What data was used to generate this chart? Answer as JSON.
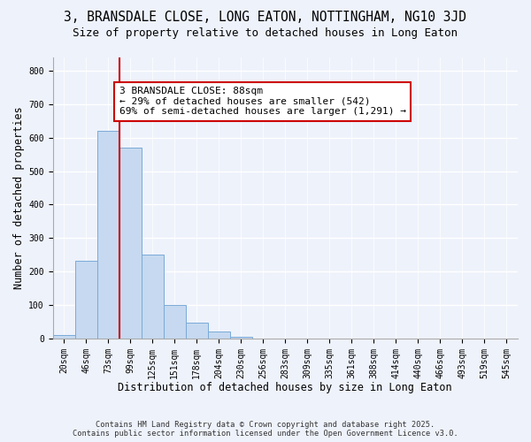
{
  "title": "3, BRANSDALE CLOSE, LONG EATON, NOTTINGHAM, NG10 3JD",
  "subtitle": "Size of property relative to detached houses in Long Eaton",
  "xlabel": "Distribution of detached houses by size in Long Eaton",
  "ylabel": "Number of detached properties",
  "bar_values": [
    10,
    232,
    621,
    570,
    252,
    100,
    47,
    22,
    5,
    0,
    0,
    0,
    0,
    0,
    0,
    0,
    0,
    0,
    0
  ],
  "bar_labels": [
    "20sqm",
    "46sqm",
    "73sqm",
    "99sqm",
    "125sqm",
    "151sqm",
    "178sqm",
    "204sqm",
    "230sqm",
    "256sqm",
    "283sqm",
    "309sqm",
    "335sqm",
    "361sqm",
    "388sqm",
    "414sqm",
    "440sqm",
    "466sqm",
    "493sqm"
  ],
  "extra_labels": [
    "519sqm",
    "545sqm"
  ],
  "bar_color": "#c6d9f0",
  "bar_edge_color": "#7aaad8",
  "vline_color": "#cc0000",
  "annotation_title": "3 BRANSDALE CLOSE: 88sqm",
  "annotation_line1": "← 29% of detached houses are smaller (542)",
  "annotation_line2": "69% of semi-detached houses are larger (1,291) →",
  "annotation_box_color": "#ffffff",
  "annotation_box_edge": "#cc0000",
  "ylim": [
    0,
    840
  ],
  "yticks": [
    0,
    100,
    200,
    300,
    400,
    500,
    600,
    700,
    800
  ],
  "bg_color": "#eef2fb",
  "footer_line1": "Contains HM Land Registry data © Crown copyright and database right 2025.",
  "footer_line2": "Contains public sector information licensed under the Open Government Licence v3.0.",
  "title_fontsize": 10.5,
  "subtitle_fontsize": 9,
  "tick_fontsize": 7,
  "label_fontsize": 8.5,
  "annotation_fontsize": 8
}
